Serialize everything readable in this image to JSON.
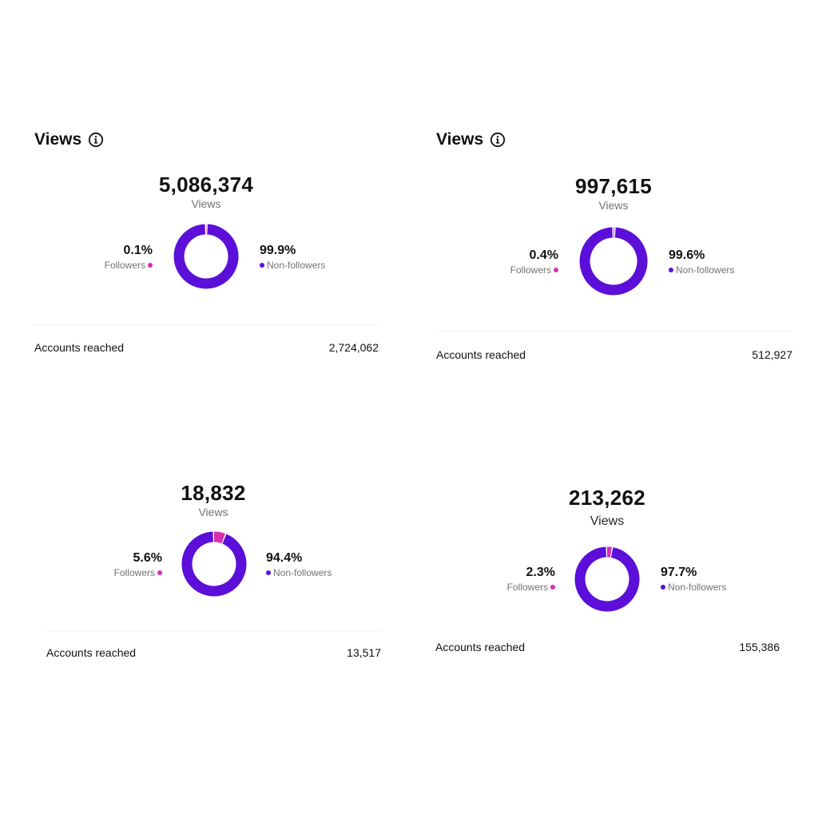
{
  "colors": {
    "non_followers": "#5b0fd8",
    "followers": "#d62fb4",
    "gap": "#ffffff"
  },
  "icons": {
    "info": "info-circle-icon"
  },
  "panels": [
    {
      "header": "Views",
      "total": "5,086,374",
      "total_label": "Views",
      "followers_pct": "0.1%",
      "followers_label": "Followers",
      "non_followers_pct": "99.9%",
      "non_followers_label": "Non-followers",
      "accounts_label": "Accounts reached",
      "accounts_value": "2,724,062"
    },
    {
      "header": "Views",
      "total": "997,615",
      "total_label": "Views",
      "followers_pct": "0.4%",
      "followers_label": "Followers",
      "non_followers_pct": "99.6%",
      "non_followers_label": "Non-followers",
      "accounts_label": "Accounts reached",
      "accounts_value": "512,927"
    },
    {
      "total": "18,832",
      "total_label": "Views",
      "followers_pct": "5.6%",
      "followers_label": "Followers",
      "non_followers_pct": "94.4%",
      "non_followers_label": "Non-followers",
      "accounts_label": "Accounts reached",
      "accounts_value": "13,517"
    },
    {
      "total": "213,262",
      "total_label": "Views",
      "followers_pct": "2.3%",
      "followers_label": "Followers",
      "non_followers_pct": "97.7%",
      "non_followers_label": "Non-followers",
      "accounts_label": "Accounts reached",
      "accounts_value": "155,386"
    }
  ],
  "chart_data": [
    {
      "type": "pie",
      "categories": [
        "Followers",
        "Non-followers"
      ],
      "values": [
        0.1,
        99.9
      ]
    },
    {
      "type": "pie",
      "categories": [
        "Followers",
        "Non-followers"
      ],
      "values": [
        0.4,
        99.6
      ]
    },
    {
      "type": "pie",
      "categories": [
        "Followers",
        "Non-followers"
      ],
      "values": [
        5.6,
        94.4
      ]
    },
    {
      "type": "pie",
      "categories": [
        "Followers",
        "Non-followers"
      ],
      "values": [
        2.3,
        97.7
      ]
    }
  ]
}
